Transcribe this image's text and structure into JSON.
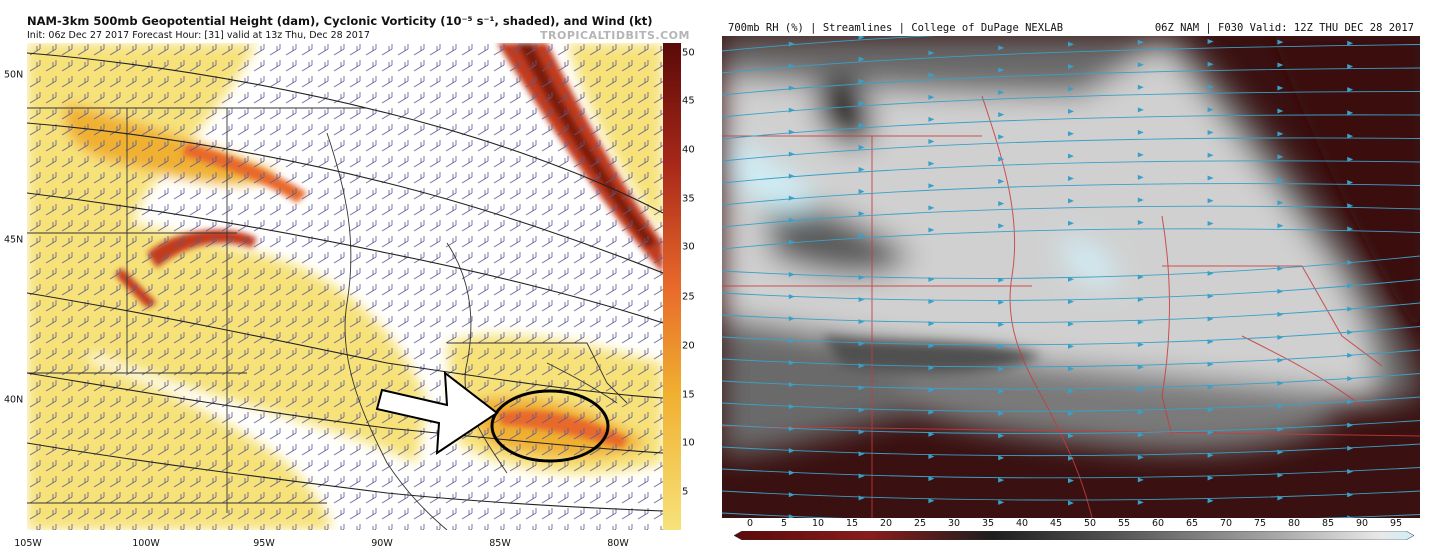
{
  "left_panel": {
    "title": "NAM-3km 500mb Geopotential Height (dam), Cyclonic Vorticity (10⁻⁵ s⁻¹, shaded), and Wind (kt)",
    "subtitle": "Init: 06z Dec 27 2017    Forecast Hour: [31]    valid at 13z Thu, Dec 28 2017",
    "credit": "TROPICALTIDBITS.COM",
    "colorbar_ticks": [
      "50",
      "45",
      "40",
      "35",
      "30",
      "25",
      "20",
      "15",
      "10",
      "5"
    ],
    "lat_labels": [
      "50N",
      "45N",
      "40N"
    ],
    "lon_labels": [
      "105W",
      "100W",
      "95W",
      "90W",
      "85W",
      "80W"
    ],
    "contour_labels": [
      "522",
      "522",
      "528",
      "528",
      "534",
      "534",
      "534",
      "534",
      "540",
      "540",
      "546",
      "546",
      "552",
      "552",
      "552",
      "558",
      "558",
      "564",
      "564"
    ],
    "colors": {
      "shade_light": "#f7e27a",
      "shade_mid": "#f0b030",
      "shade_orange": "#e8692a",
      "shade_red": "#c23a1e",
      "shade_dark": "#7a1c10",
      "barb": "#5a5a8c"
    }
  },
  "right_panel": {
    "title_left": "700mb RH (%) | Streamlines | College of DuPage NEXLAB",
    "title_right": "06Z NAM | F030 Valid: 12Z THU DEC 28 2017",
    "colorbar_ticks": [
      "0",
      "5",
      "10",
      "15",
      "20",
      "25",
      "30",
      "35",
      "40",
      "45",
      "50",
      "55",
      "60",
      "65",
      "70",
      "75",
      "80",
      "85",
      "90",
      "95"
    ],
    "colors": {
      "dry": "#3a1010",
      "mid": "#6a6a6a",
      "moist": "#d9d9d9",
      "saturated": "#cfeff7",
      "streamline": "#3aa0c8",
      "borders": "#c83a3a"
    }
  }
}
